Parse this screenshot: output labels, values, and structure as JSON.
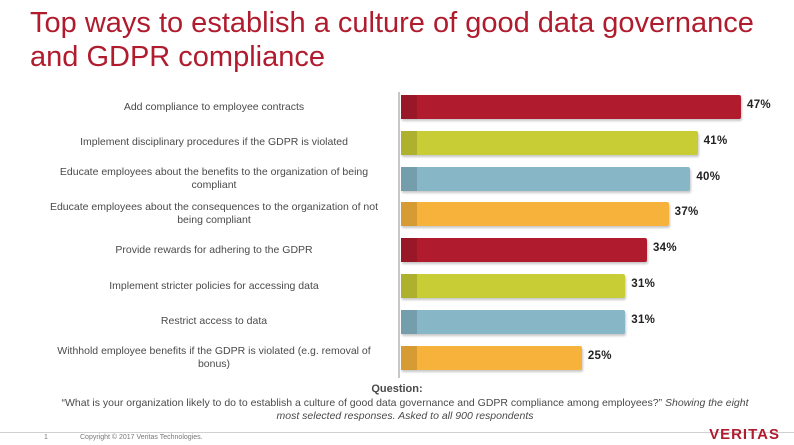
{
  "title": "Top ways to establish a culture of good data governance and GDPR compliance",
  "chart_data": {
    "type": "bar",
    "orientation": "horizontal",
    "categories": [
      "Add compliance to employee contracts",
      "Implement disciplinary procedures if the GDPR is violated",
      "Educate employees about the benefits to the organization of being compliant",
      "Educate employees about the consequences to the organization of not being compliant",
      "Provide rewards for adhering to the GDPR",
      "Implement stricter policies for accessing data",
      "Restrict access to data",
      "Withhold employee benefits if the GDPR is violated (e.g. removal of bonus)"
    ],
    "label_lines": [
      [
        "Add compliance to employee contracts"
      ],
      [
        "Implement disciplinary procedures if the GDPR is violated"
      ],
      [
        "Educate employees about the benefits to the organization of being",
        "compliant"
      ],
      [
        "Educate employees about the consequences to the organization of not",
        "being compliant"
      ],
      [
        "Provide rewards for adhering to the GDPR"
      ],
      [
        "Implement stricter policies for accessing data"
      ],
      [
        "Restrict access to data"
      ],
      [
        "Withhold employee benefits if the GDPR is violated (e.g. removal of",
        "bonus)"
      ]
    ],
    "values": [
      47,
      41,
      40,
      37,
      34,
      31,
      31,
      25
    ],
    "value_labels": [
      "47%",
      "41%",
      "40%",
      "37%",
      "34%",
      "31%",
      "31%",
      "25%"
    ],
    "unit": "%",
    "colors": [
      "#b01c2e",
      "#c8cc35",
      "#87b6c7",
      "#f7b23b",
      "#b01c2e",
      "#c8cc35",
      "#87b6c7",
      "#f7b23b"
    ],
    "xlim": [
      0,
      50
    ],
    "grid": false,
    "legend": "none"
  },
  "question": {
    "heading": "Question:",
    "text": "“What is your organization likely to do to establish a culture of good data governance and GDPR compliance among employees?”",
    "note": "Showing the eight most selected responses. Asked to all 900 respondents"
  },
  "footer": {
    "page_number": "1",
    "copyright": "Copyright © 2017 Veritas Technologies.",
    "logo": "VERITAS"
  }
}
